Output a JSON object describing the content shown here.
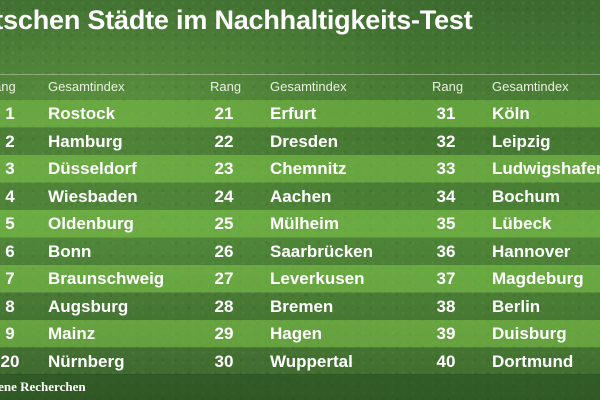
{
  "title": "utschen Städte im Nachhaltigkeits-Test",
  "headers": {
    "rang_1": "ang",
    "index_1": "Gesamtindex",
    "rang_2": "Rang",
    "index_2": "Gesamtindex",
    "rang_3": "Rang",
    "index_3": "Gesamtindex"
  },
  "rows": [
    {
      "r1": "1",
      "c1": "Rostock",
      "r2": "21",
      "c2": "Erfurt",
      "r3": "31",
      "c3": "Köln"
    },
    {
      "r1": "2",
      "c1": "Hamburg",
      "r2": "22",
      "c2": "Dresden",
      "r3": "32",
      "c3": "Leipzig"
    },
    {
      "r1": "3",
      "c1": "Düsseldorf",
      "r2": "23",
      "c2": "Chemnitz",
      "r3": "33",
      "c3": "Ludwigshafen"
    },
    {
      "r1": "4",
      "c1": "Wiesbaden",
      "r2": "24",
      "c2": "Aachen",
      "r3": "34",
      "c3": "Bochum"
    },
    {
      "r1": "5",
      "c1": "Oldenburg",
      "r2": "25",
      "c2": "Mülheim",
      "r3": "35",
      "c3": "Lübeck"
    },
    {
      "r1": "6",
      "c1": "Bonn",
      "r2": "26",
      "c2": "Saarbrücken",
      "r3": "36",
      "c3": "Hannover"
    },
    {
      "r1": "7",
      "c1": "Braunschweig",
      "r2": "27",
      "c2": "Leverkusen",
      "r3": "37",
      "c3": "Magdeburg"
    },
    {
      "r1": "8",
      "c1": "Augsburg",
      "r2": "28",
      "c2": "Bremen",
      "r3": "38",
      "c3": "Berlin"
    },
    {
      "r1": "9",
      "c1": "Mainz",
      "r2": "29",
      "c2": "Hagen",
      "r3": "39",
      "c3": "Duisburg"
    },
    {
      "r1": "20",
      "c1": "Nürnberg",
      "r2": "30",
      "c2": "Wuppertal",
      "r3": "40",
      "c3": "Dortmund"
    }
  ],
  "footer": "igene Recherchen"
}
